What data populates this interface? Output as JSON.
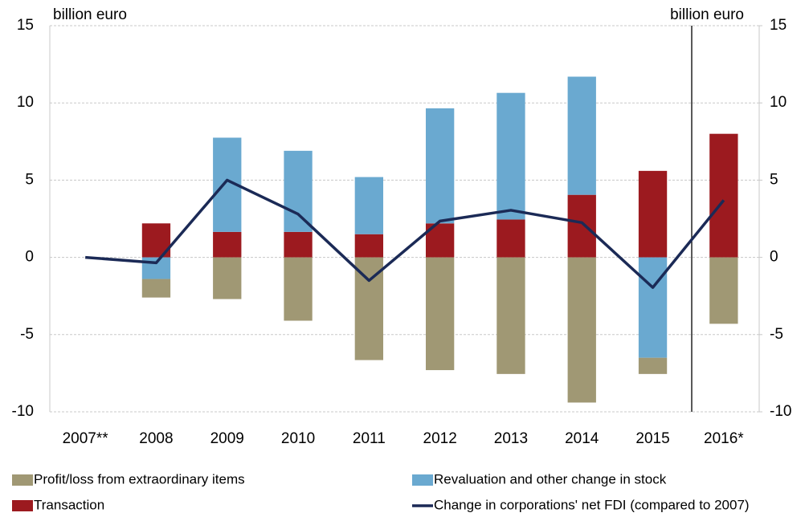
{
  "chart_data": {
    "type": "bar",
    "y_label": "billion euro",
    "y2_label": "billion euro",
    "categories": [
      "2007**",
      "2008",
      "2009",
      "2010",
      "2011",
      "2012",
      "2013",
      "2014",
      "2015",
      "2016*"
    ],
    "series": [
      {
        "name": "Profit/loss from extraordinary items",
        "color": "#a09874",
        "values": [
          null,
          -1.2,
          -2.7,
          -4.1,
          -6.65,
          -7.3,
          -7.55,
          -9.4,
          -1.05,
          -4.3
        ]
      },
      {
        "name": "Revaluation and other change in stock",
        "color": "#6aa9d0",
        "values": [
          null,
          -1.4,
          6.1,
          5.25,
          3.7,
          7.45,
          8.2,
          7.65,
          -6.5,
          null
        ]
      },
      {
        "name": "Transaction",
        "color": "#9c1a1f",
        "values": [
          null,
          2.2,
          1.65,
          1.65,
          1.5,
          2.2,
          2.45,
          4.05,
          5.6,
          8.0
        ]
      },
      {
        "name": "Change in corporations' net FDI (compared to 2007)",
        "type": "line",
        "color": "#1b2a56",
        "values": [
          0,
          -0.35,
          5.0,
          2.8,
          -1.5,
          2.35,
          3.05,
          2.25,
          -1.95,
          3.7
        ]
      }
    ],
    "ylim": [
      -10,
      15
    ],
    "yticks": [
      -10,
      -5,
      0,
      5,
      10,
      15
    ],
    "y2lim": [
      -10,
      15
    ],
    "y2ticks": [
      -10,
      -5,
      0,
      5,
      10,
      15
    ],
    "grid": true
  }
}
